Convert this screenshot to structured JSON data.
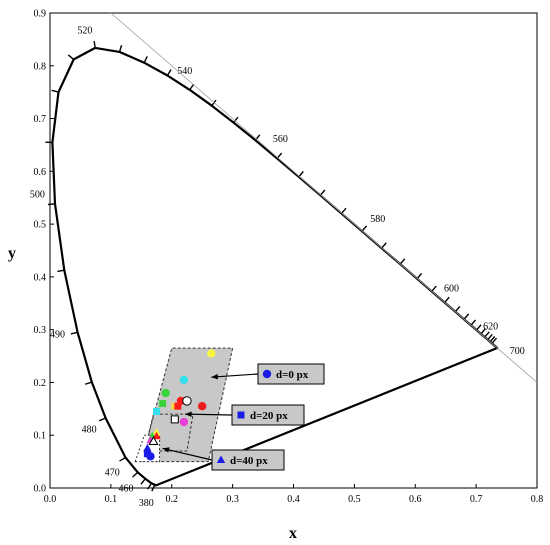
{
  "chart_data": {
    "type": "scatter",
    "xlabel": "x",
    "ylabel": "y",
    "xlim": [
      0,
      0.8
    ],
    "ylim": [
      0,
      0.9
    ],
    "x_ticks": [
      "0.0",
      "0.1",
      "0.2",
      "0.3",
      "0.4",
      "0.5",
      "0.6",
      "0.7",
      "0.8"
    ],
    "y_ticks": [
      "0.0",
      "0.1",
      "0.2",
      "0.3",
      "0.4",
      "0.5",
      "0.6",
      "0.7",
      "0.8",
      "0.9"
    ],
    "spectral_locus": [
      [
        0.1741,
        0.005
      ],
      [
        0.172,
        0.006
      ],
      [
        0.1666,
        0.0089
      ],
      [
        0.1566,
        0.0177
      ],
      [
        0.144,
        0.0297
      ],
      [
        0.1241,
        0.0578
      ],
      [
        0.0913,
        0.1327
      ],
      [
        0.0687,
        0.2007
      ],
      [
        0.0454,
        0.295
      ],
      [
        0.0235,
        0.4127
      ],
      [
        0.0082,
        0.5384
      ],
      [
        0.0039,
        0.6548
      ],
      [
        0.0139,
        0.7502
      ],
      [
        0.0389,
        0.812
      ],
      [
        0.0743,
        0.8338
      ],
      [
        0.1142,
        0.8262
      ],
      [
        0.1547,
        0.8059
      ],
      [
        0.1929,
        0.7816
      ],
      [
        0.2296,
        0.7543
      ],
      [
        0.2658,
        0.7243
      ],
      [
        0.3016,
        0.6923
      ],
      [
        0.3373,
        0.6589
      ],
      [
        0.3731,
        0.6245
      ],
      [
        0.4087,
        0.5896
      ],
      [
        0.4441,
        0.5547
      ],
      [
        0.4788,
        0.5202
      ],
      [
        0.5125,
        0.4866
      ],
      [
        0.5448,
        0.4544
      ],
      [
        0.5752,
        0.4242
      ],
      [
        0.6029,
        0.3965
      ],
      [
        0.627,
        0.3725
      ],
      [
        0.6482,
        0.3514
      ],
      [
        0.6658,
        0.334
      ],
      [
        0.6801,
        0.3197
      ],
      [
        0.6915,
        0.3083
      ],
      [
        0.7006,
        0.2993
      ],
      [
        0.7079,
        0.292
      ],
      [
        0.714,
        0.2859
      ],
      [
        0.719,
        0.2809
      ],
      [
        0.723,
        0.277
      ],
      [
        0.726,
        0.274
      ],
      [
        0.7347,
        0.2653
      ]
    ],
    "wavelength_labels": [
      {
        "text": "380",
        "x": 0.174,
        "y": 0.005
      },
      {
        "text": "460",
        "x": 0.144,
        "y": 0.03
      },
      {
        "text": "470",
        "x": 0.124,
        "y": 0.058
      },
      {
        "text": "480",
        "x": 0.091,
        "y": 0.133
      },
      {
        "text": "490",
        "x": 0.045,
        "y": 0.295
      },
      {
        "text": "500",
        "x": 0.008,
        "y": 0.538
      },
      {
        "text": "520",
        "x": 0.074,
        "y": 0.834
      },
      {
        "text": "540",
        "x": 0.23,
        "y": 0.754
      },
      {
        "text": "560",
        "x": 0.373,
        "y": 0.624
      },
      {
        "text": "580",
        "x": 0.512,
        "y": 0.487
      },
      {
        "text": "600",
        "x": 0.627,
        "y": 0.373
      },
      {
        "text": "620",
        "x": 0.691,
        "y": 0.308
      },
      {
        "text": "700",
        "x": 0.735,
        "y": 0.265
      }
    ],
    "gamut_regions": [
      {
        "name": "d=0 px",
        "points": [
          [
            0.15,
            0.05
          ],
          [
            0.26,
            0.05
          ],
          [
            0.3,
            0.265
          ],
          [
            0.2,
            0.265
          ]
        ]
      },
      {
        "name": "d=20 px",
        "points": [
          [
            0.155,
            0.07
          ],
          [
            0.225,
            0.07
          ],
          [
            0.235,
            0.14
          ],
          [
            0.17,
            0.14
          ]
        ]
      },
      {
        "name": "d=40 px",
        "points": [
          [
            0.14,
            0.05
          ],
          [
            0.18,
            0.05
          ],
          [
            0.18,
            0.1
          ],
          [
            0.155,
            0.1
          ]
        ]
      }
    ],
    "series": [
      {
        "name": "d=0 px",
        "marker": "circle",
        "points": [
          {
            "x": 0.265,
            "y": 0.255,
            "color": "#f5f542"
          },
          {
            "x": 0.22,
            "y": 0.205,
            "color": "#35e0ee"
          },
          {
            "x": 0.19,
            "y": 0.18,
            "color": "#3ad23a"
          },
          {
            "x": 0.215,
            "y": 0.165,
            "color": "#ff1b1b"
          },
          {
            "x": 0.225,
            "y": 0.165,
            "color": "#ffffff"
          },
          {
            "x": 0.25,
            "y": 0.155,
            "color": "#e81c1c"
          },
          {
            "x": 0.22,
            "y": 0.125,
            "color": "#e83fd8"
          },
          {
            "x": 0.165,
            "y": 0.06,
            "color": "#1c1ce8"
          }
        ]
      },
      {
        "name": "d=20 px",
        "marker": "square",
        "points": [
          {
            "x": 0.185,
            "y": 0.16,
            "color": "#3ad23a"
          },
          {
            "x": 0.205,
            "y": 0.155,
            "color": "#f5d742"
          },
          {
            "x": 0.21,
            "y": 0.155,
            "color": "#ff1b1b"
          },
          {
            "x": 0.175,
            "y": 0.145,
            "color": "#35e0ee"
          },
          {
            "x": 0.205,
            "y": 0.13,
            "color": "#ffffff"
          },
          {
            "x": 0.16,
            "y": 0.065,
            "color": "#1c1ce8"
          }
        ]
      },
      {
        "name": "d=40 px",
        "marker": "triangle",
        "points": [
          {
            "x": 0.175,
            "y": 0.105,
            "color": "#f5f542"
          },
          {
            "x": 0.168,
            "y": 0.098,
            "color": "#3ad23a"
          },
          {
            "x": 0.175,
            "y": 0.098,
            "color": "#ff1b1b"
          },
          {
            "x": 0.165,
            "y": 0.09,
            "color": "#e83fd8"
          },
          {
            "x": 0.17,
            "y": 0.088,
            "color": "#ffffff"
          },
          {
            "x": 0.16,
            "y": 0.075,
            "color": "#1c1ce8"
          }
        ]
      }
    ],
    "legend": [
      {
        "label": "d=0 px",
        "marker": "circle"
      },
      {
        "label": "d=20 px",
        "marker": "square"
      },
      {
        "label": "d=40 px",
        "marker": "triangle"
      }
    ],
    "grid": false
  },
  "colors": {
    "axis": "#000000",
    "region_fill": "#c8c8c8",
    "legend_box_fill": "#c8c8c8",
    "marker_blue": "#1c1ce8"
  }
}
